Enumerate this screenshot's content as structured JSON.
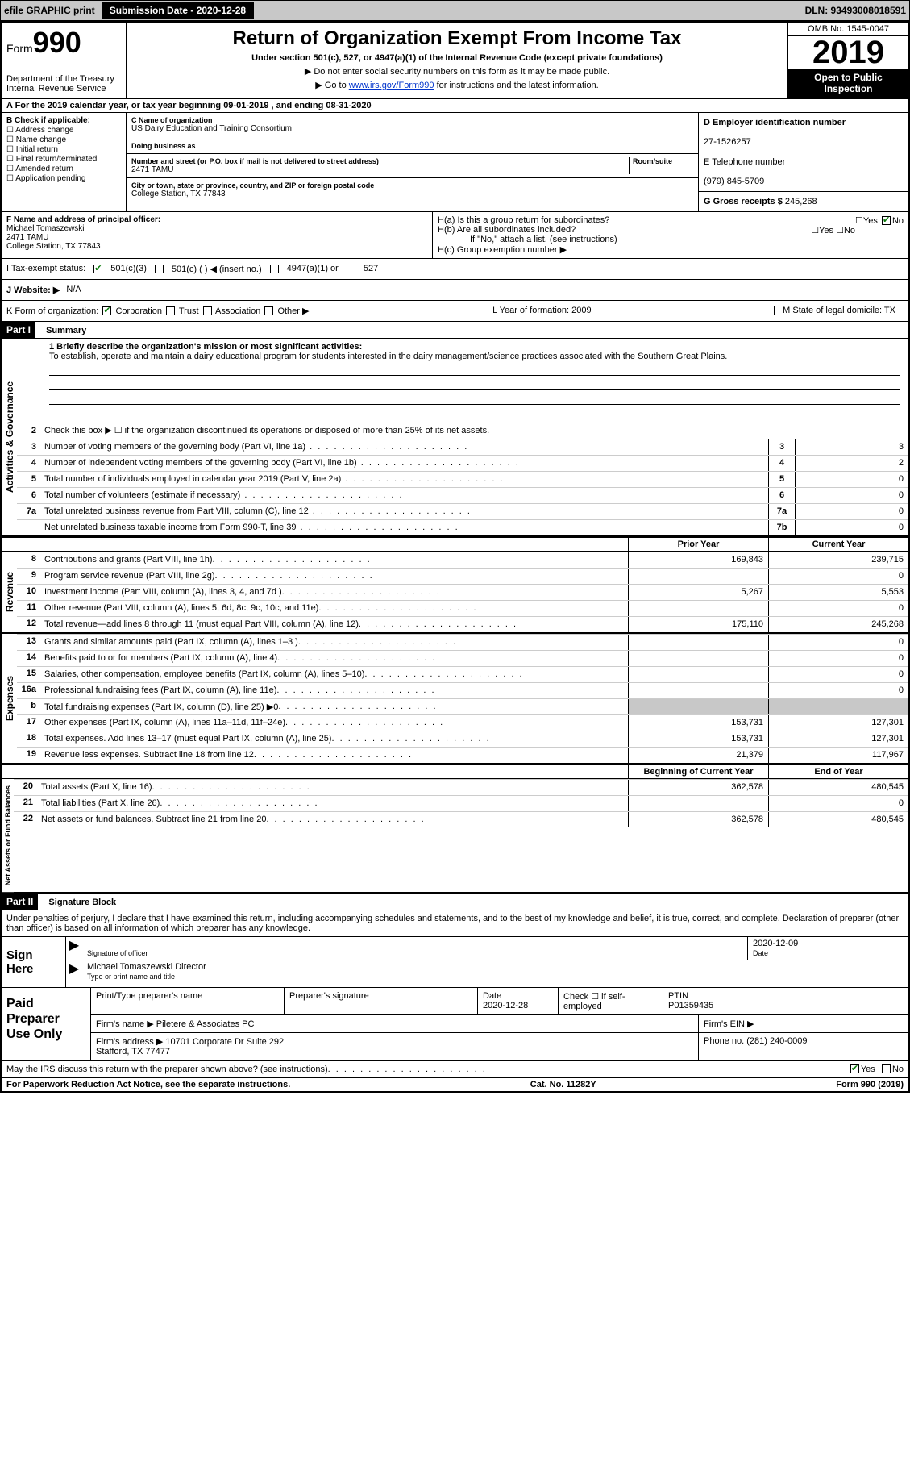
{
  "colors": {
    "grey_bg": "#c8c8c8",
    "black": "#000000",
    "white": "#ffffff",
    "link": "#0033cc",
    "check_green": "#0a7a0a"
  },
  "topbar": {
    "efile": "efile GRAPHIC print",
    "submission_label": "Submission Date - 2020-12-28",
    "dln": "DLN: 93493008018591"
  },
  "header": {
    "form_word": "Form",
    "form_num": "990",
    "dept": "Department of the Treasury\nInternal Revenue Service",
    "title": "Return of Organization Exempt From Income Tax",
    "sub": "Under section 501(c), 527, or 4947(a)(1) of the Internal Revenue Code (except private foundations)",
    "note1": "▶ Do not enter social security numbers on this form as it may be made public.",
    "note2_pre": "▶ Go to ",
    "note2_link": "www.irs.gov/Form990",
    "note2_post": " for instructions and the latest information.",
    "omb": "OMB No. 1545-0047",
    "year": "2019",
    "open": "Open to Public Inspection"
  },
  "period": {
    "text": "A For the 2019 calendar year, or tax year beginning 09-01-2019   , and ending 08-31-2020"
  },
  "boxB": {
    "label": "B Check if applicable:",
    "items": [
      "Address change",
      "Name change",
      "Initial return",
      "Final return/terminated",
      "Amended return",
      "Application pending"
    ]
  },
  "boxC": {
    "name_lbl": "C Name of organization",
    "name": "US Dairy Education and Training Consortium",
    "dba_lbl": "Doing business as",
    "dba": "",
    "addr_lbl": "Number and street (or P.O. box if mail is not delivered to street address)",
    "room_lbl": "Room/suite",
    "addr": "2471 TAMU",
    "city_lbl": "City or town, state or province, country, and ZIP or foreign postal code",
    "city": "College Station, TX  77843"
  },
  "boxD": {
    "lbl": "D Employer identification number",
    "val": "27-1526257"
  },
  "boxE": {
    "lbl": "E Telephone number",
    "val": "(979) 845-5709"
  },
  "boxG": {
    "lbl": "G Gross receipts $",
    "val": "245,268"
  },
  "boxF": {
    "lbl": "F  Name and address of principal officer:",
    "name": "Michael Tomaszewski",
    "addr1": "2471 TAMU",
    "addr2": "College Station, TX  77843"
  },
  "boxH": {
    "a": "H(a)  Is this a group return for subordinates?",
    "a_yes": "Yes",
    "a_no": "No",
    "b": "H(b)  Are all subordinates included?",
    "b_yes": "Yes",
    "b_no": "No",
    "b_note": "If \"No,\" attach a list. (see instructions)",
    "c": "H(c)  Group exemption number ▶"
  },
  "taxexempt": {
    "lbl": "I   Tax-exempt status:",
    "c3": "501(c)(3)",
    "c_other": "501(c) (  ) ◀ (insert no.)",
    "a1": "4947(a)(1) or",
    "t527": "527"
  },
  "website": {
    "lbl": "J   Website: ▶",
    "val": "N/A"
  },
  "korg": {
    "lbl": "K Form of organization:",
    "opts": [
      "Corporation",
      "Trust",
      "Association",
      "Other ▶"
    ],
    "l": "L Year of formation: 2009",
    "m": "M State of legal domicile: TX"
  },
  "part1": {
    "hdr": "Part I",
    "title": "Summary",
    "q1_lbl": "1   Briefly describe the organization's mission or most significant activities:",
    "q1_text": "To establish, operate and maintain a dairy educational program for students interested in the dairy management/science practices associated with the Southern Great Plains.",
    "q2": "Check this box ▶ ☐  if the organization discontinued its operations or disposed of more than 25% of its net assets.",
    "lines_num": [
      {
        "n": "3",
        "t": "Number of voting members of the governing body (Part VI, line 1a)",
        "box": "3",
        "v": "3"
      },
      {
        "n": "4",
        "t": "Number of independent voting members of the governing body (Part VI, line 1b)",
        "box": "4",
        "v": "2"
      },
      {
        "n": "5",
        "t": "Total number of individuals employed in calendar year 2019 (Part V, line 2a)",
        "box": "5",
        "v": "0"
      },
      {
        "n": "6",
        "t": "Total number of volunteers (estimate if necessary)",
        "box": "6",
        "v": "0"
      },
      {
        "n": "7a",
        "t": "Total unrelated business revenue from Part VIII, column (C), line 12",
        "box": "7a",
        "v": "0"
      },
      {
        "n": "",
        "t": "Net unrelated business taxable income from Form 990-T, line 39",
        "box": "7b",
        "v": "0"
      }
    ],
    "prior_hdr": "Prior Year",
    "current_hdr": "Current Year"
  },
  "revenue": {
    "label": "Revenue",
    "rows": [
      {
        "n": "8",
        "t": "Contributions and grants (Part VIII, line 1h)",
        "p": "169,843",
        "c": "239,715"
      },
      {
        "n": "9",
        "t": "Program service revenue (Part VIII, line 2g)",
        "p": "",
        "c": "0"
      },
      {
        "n": "10",
        "t": "Investment income (Part VIII, column (A), lines 3, 4, and 7d )",
        "p": "5,267",
        "c": "5,553"
      },
      {
        "n": "11",
        "t": "Other revenue (Part VIII, column (A), lines 5, 6d, 8c, 9c, 10c, and 11e)",
        "p": "",
        "c": "0"
      },
      {
        "n": "12",
        "t": "Total revenue—add lines 8 through 11 (must equal Part VIII, column (A), line 12)",
        "p": "175,110",
        "c": "245,268"
      }
    ]
  },
  "expenses": {
    "label": "Expenses",
    "rows": [
      {
        "n": "13",
        "t": "Grants and similar amounts paid (Part IX, column (A), lines 1–3 )",
        "p": "",
        "c": "0"
      },
      {
        "n": "14",
        "t": "Benefits paid to or for members (Part IX, column (A), line 4)",
        "p": "",
        "c": "0"
      },
      {
        "n": "15",
        "t": "Salaries, other compensation, employee benefits (Part IX, column (A), lines 5–10)",
        "p": "",
        "c": "0"
      },
      {
        "n": "16a",
        "t": "Professional fundraising fees (Part IX, column (A), line 11e)",
        "p": "",
        "c": "0"
      },
      {
        "n": "b",
        "t": "Total fundraising expenses (Part IX, column (D), line 25) ▶0",
        "p": "grey",
        "c": "grey"
      },
      {
        "n": "17",
        "t": "Other expenses (Part IX, column (A), lines 11a–11d, 11f–24e)",
        "p": "153,731",
        "c": "127,301"
      },
      {
        "n": "18",
        "t": "Total expenses. Add lines 13–17 (must equal Part IX, column (A), line 25)",
        "p": "153,731",
        "c": "127,301"
      },
      {
        "n": "19",
        "t": "Revenue less expenses. Subtract line 18 from line 12",
        "p": "21,379",
        "c": "117,967"
      }
    ]
  },
  "netassets": {
    "label": "Net Assets or Fund Balances",
    "hdr1": "Beginning of Current Year",
    "hdr2": "End of Year",
    "rows": [
      {
        "n": "20",
        "t": "Total assets (Part X, line 16)",
        "p": "362,578",
        "c": "480,545"
      },
      {
        "n": "21",
        "t": "Total liabilities (Part X, line 26)",
        "p": "",
        "c": "0"
      },
      {
        "n": "22",
        "t": "Net assets or fund balances. Subtract line 21 from line 20",
        "p": "362,578",
        "c": "480,545"
      }
    ]
  },
  "part2": {
    "hdr": "Part II",
    "title": "Signature Block",
    "decl": "Under penalties of perjury, I declare that I have examined this return, including accompanying schedules and statements, and to the best of my knowledge and belief, it is true, correct, and complete. Declaration of preparer (other than officer) is based on all information of which preparer has any knowledge."
  },
  "sign": {
    "label": "Sign Here",
    "sig_lbl": "Signature of officer",
    "date": "2020-12-09",
    "date_lbl": "Date",
    "name": "Michael Tomaszewski Director",
    "name_lbl": "Type or print name and title"
  },
  "paid": {
    "label": "Paid Preparer Use Only",
    "r1": {
      "c1": "Print/Type preparer's name",
      "c2": "Preparer's signature",
      "c3": "Date\n2020-12-28",
      "c4": "Check ☐ if self-employed",
      "c5": "PTIN\nP01359435"
    },
    "r2": {
      "c1": "Firm's name    ▶ Piletere & Associates PC",
      "c2": "Firm's EIN ▶"
    },
    "r3": {
      "c1": "Firm's address ▶ 10701 Corporate Dr Suite 292\nStafford, TX  77477",
      "c2": "Phone no. (281) 240-0009"
    }
  },
  "discuss": {
    "text": "May the IRS discuss this return with the preparer shown above? (see instructions)",
    "yes": "Yes",
    "no": "No"
  },
  "footer": {
    "left": "For Paperwork Reduction Act Notice, see the separate instructions.",
    "mid": "Cat. No. 11282Y",
    "right": "Form 990 (2019)"
  },
  "vert_labels": {
    "ag": "Activities & Governance"
  }
}
